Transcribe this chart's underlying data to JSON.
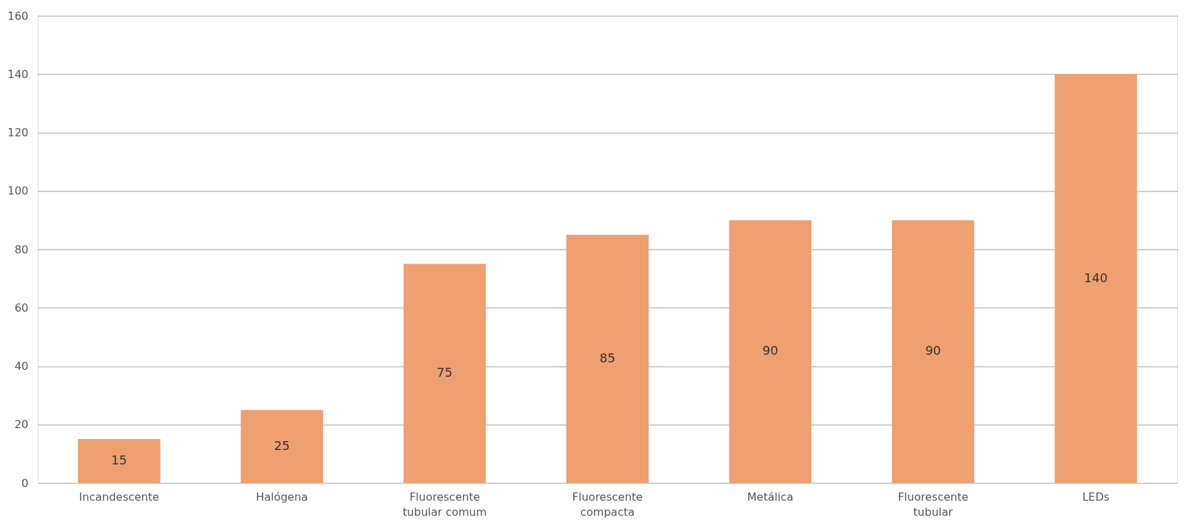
{
  "chart_data": {
    "type": "bar",
    "categories": [
      "Incandescente",
      "Halógena",
      "Fluorescente tubular comum",
      "Fluorescente compacta",
      "Metálica",
      "Fluorescente tubular",
      "LEDs"
    ],
    "values": [
      15,
      25,
      75,
      85,
      90,
      90,
      140
    ],
    "color": "#eea070",
    "ylim": [
      0,
      160
    ],
    "yticks": [
      0,
      20,
      40,
      60,
      80,
      100,
      120,
      140,
      160
    ],
    "grid": "y",
    "data_labels": true
  }
}
